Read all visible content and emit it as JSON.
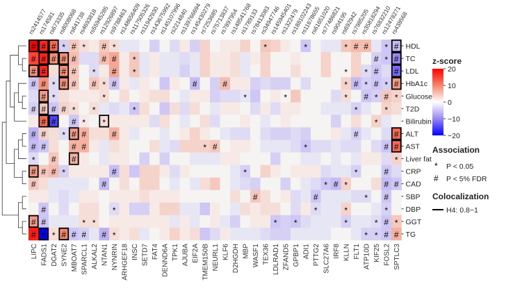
{
  "chart_data": {
    "type": "heatmap",
    "snps": [
      "rs2414577",
      "rs174581",
      "rs673335",
      "rs8008068",
      "rs641738",
      "rs4693818",
      "rs55945285",
      "rs12926897",
      "rs9788463",
      "rs148656409",
      "rs117505326",
      "rs11942930",
      "rs143675992",
      "rs145107996",
      "rs2214840",
      "rs139766694",
      "rs145430279",
      "rs7253685",
      "rs75713837",
      "rs7897954",
      "rs148541768",
      "rs1789133",
      "rs78413083",
      "rs34947746",
      "rs145945401",
      "rs1322479",
      "rs188102243",
      "rs11678655",
      "rs61651020",
      "rs77486821",
      "rs904195",
      "rs692942",
      "rs7985205",
      "rs35818294",
      "rs76832210",
      "rs12478271",
      "rs438568"
    ],
    "genes": [
      "LIPC",
      "FADS1",
      "DGAT2",
      "SYNE2",
      "MBOAT7",
      "SPARCL1",
      "ALKAL2",
      "NTAN1",
      "NYNRIN",
      "ARHGEF18",
      "INSC",
      "SETD7",
      "FAT4",
      "DENND6A",
      "TPK1",
      "AJUBA",
      "EIF2A",
      "TMEM150B",
      "NEURL1",
      "KLF6",
      "D2HGDH",
      "MBP",
      "WASF1",
      "TEX36",
      "LDLRAD1",
      "ZFAND5",
      "GPBP1",
      "ADI1",
      "PTTG2",
      "SLC27A6",
      "IRF8",
      "KLLN",
      "FLT1",
      "ATP10D",
      "KIF25",
      "FOSL2",
      "SPTLC3"
    ],
    "traits": [
      "HDL",
      "TC",
      "LDL",
      "HbA1c",
      "Glucose",
      "T2D",
      "Bilirubin",
      "ALT",
      "AST",
      "Liver fat",
      "CRP",
      "CAD",
      "SBP",
      "DBP",
      "GGT",
      "TG"
    ],
    "z": [
      [
        20,
        17,
        12,
        -3,
        4,
        2,
        1,
        4,
        2,
        -1,
        -1,
        0,
        -3,
        0,
        -2,
        1,
        -3,
        3,
        0,
        1,
        1,
        3,
        0,
        4,
        3,
        1,
        0,
        -4,
        0,
        -1,
        -1,
        4,
        5,
        5,
        -1,
        -4,
        -5
      ],
      [
        15,
        17,
        9,
        9,
        5,
        -2,
        -2,
        5,
        7,
        1,
        4,
        -1,
        1,
        -1,
        -1,
        -2,
        -1,
        3,
        1,
        1,
        2,
        -1,
        1,
        3,
        0,
        0,
        1,
        0,
        0,
        3,
        0,
        0,
        3,
        0,
        -3,
        -4,
        -10
      ],
      [
        9,
        17,
        2,
        9,
        4,
        0,
        -2,
        1,
        7,
        1,
        4,
        -1,
        1,
        -1,
        -1,
        -3,
        -1,
        3,
        1,
        1,
        2,
        -1,
        0,
        3,
        0,
        0,
        2,
        0,
        0,
        3,
        0,
        0,
        3,
        -2,
        -4,
        -2,
        -12
      ],
      [
        -4,
        9,
        -2,
        9,
        4,
        0,
        4,
        2,
        -4,
        1,
        -1,
        1,
        0,
        -4,
        1,
        0,
        -5,
        0,
        -3,
        5,
        1,
        1,
        -3,
        -2,
        -3,
        -3,
        0,
        -2,
        0,
        0,
        0,
        3,
        -5,
        -3,
        -4,
        -3,
        8
      ],
      [
        -2,
        8,
        -2,
        2,
        1,
        1,
        1,
        2,
        0,
        2,
        0,
        1,
        2,
        2,
        0,
        -1,
        1,
        1,
        -3,
        -2,
        -2,
        -1,
        -4,
        0,
        1,
        0,
        4,
        0,
        0,
        0,
        -2,
        2,
        0,
        -4,
        -3,
        4,
        3
      ],
      [
        -3,
        4,
        -4,
        3,
        2,
        0,
        2,
        -1,
        -2,
        -1,
        -4,
        2,
        0,
        -4,
        2,
        -2,
        2,
        0,
        -1,
        1,
        1,
        0,
        -2,
        1,
        -2,
        1,
        1,
        0,
        0,
        -1,
        -1,
        -1,
        -3,
        -1,
        0,
        3,
        2
      ],
      [
        1,
        12,
        -15,
        0,
        -4,
        1,
        0,
        2,
        1,
        1,
        1,
        1,
        -2,
        2,
        0,
        -1,
        0,
        2,
        -2,
        0,
        0,
        1,
        0,
        -1,
        0,
        1,
        0,
        0,
        0,
        0,
        -3,
        0,
        2,
        0,
        3,
        -1,
        0
      ],
      [
        -6,
        3,
        2,
        -2,
        8,
        6,
        2,
        2,
        6,
        1,
        -1,
        0,
        0,
        -1,
        0,
        1,
        3,
        1,
        0,
        -1,
        -2,
        -2,
        0,
        -2,
        -3,
        -3,
        -2,
        -3,
        0,
        0,
        1,
        -1,
        -3,
        -1,
        0,
        -2,
        12
      ],
      [
        -5,
        -4,
        2,
        0,
        6,
        6,
        1,
        -1,
        2,
        1,
        0,
        0,
        2,
        -1,
        -2,
        3,
        3,
        3,
        4,
        0,
        1,
        1,
        0,
        -1,
        -1,
        -1,
        -2,
        -4,
        -2,
        -2,
        -1,
        -2,
        -2,
        0,
        -2,
        -4,
        12
      ],
      [
        -2,
        0,
        4,
        0,
        6,
        1,
        0,
        -1,
        1,
        1,
        0,
        -3,
        0,
        -3,
        0,
        0,
        -1,
        -1,
        -1,
        1,
        1,
        0,
        0,
        0,
        -3,
        0,
        0,
        -1,
        -1,
        0,
        -1,
        0,
        -1,
        1,
        1,
        -2,
        3
      ],
      [
        8,
        4,
        5,
        -3,
        1,
        1,
        1,
        1,
        -5,
        2,
        -4,
        3,
        3,
        1,
        -2,
        1,
        0,
        0,
        0,
        0,
        -1,
        -3,
        0,
        3,
        1,
        0,
        1,
        1,
        1,
        -2,
        -1,
        -1,
        -3,
        0,
        0,
        -4,
        -2
      ],
      [
        4,
        2,
        -1,
        -1,
        -1,
        -1,
        0,
        -5,
        0,
        2,
        0,
        3,
        3,
        0,
        -1,
        0,
        -1,
        2,
        4,
        0,
        -1,
        -2,
        -3,
        0,
        0,
        -3,
        0,
        -1,
        -2,
        -4,
        -5,
        3,
        0,
        0,
        2,
        -5,
        -4
      ],
      [
        1,
        1,
        -1,
        -2,
        -1,
        1,
        1,
        0,
        1,
        1,
        1,
        2,
        1,
        1,
        1,
        0,
        0,
        0,
        0,
        0,
        2,
        0,
        4,
        2,
        0,
        1,
        -2,
        -1,
        -4,
        -1,
        -1,
        -1,
        -2,
        -2,
        0,
        -4,
        0
      ],
      [
        0,
        -4,
        0,
        -2,
        0,
        2,
        2,
        0,
        -2,
        1,
        -3,
        -3,
        1,
        3,
        3,
        -1,
        -1,
        -4,
        1,
        0,
        -1,
        2,
        1,
        2,
        2,
        0,
        -2,
        1,
        -2,
        -1,
        -1,
        3,
        0,
        0,
        -1,
        -3,
        0
      ],
      [
        8,
        -4,
        -1,
        -1,
        -1,
        2,
        2,
        0,
        1,
        1,
        1,
        1,
        1,
        1,
        -1,
        1,
        -1,
        0,
        1,
        -1,
        -3,
        0,
        1,
        1,
        -4,
        -3,
        -4,
        -2,
        -1,
        -1,
        -1,
        -3,
        -1,
        -1,
        -2,
        -4,
        4
      ],
      [
        18,
        -20,
        2,
        10,
        -4,
        -3,
        -1,
        -6,
        2,
        1,
        2,
        -1,
        0,
        1,
        3,
        1,
        2,
        -4,
        -2,
        1,
        -1,
        -1,
        -1,
        -2,
        -3,
        -3,
        -1,
        -1,
        -1,
        -1,
        0,
        0,
        -1,
        -3,
        -3,
        -4,
        6
      ]
    ],
    "markers": [
      "###*#*.#*..............*...*...*##.*#",
      "#####..##.*.......................#*#",
      "##.##.*.#.*....................*.*#.#",
      "##*##.#*#.......#..#...........*#*#*#",
      ".#*....*.............*...*.....*.#*#*",
      "####*.*...*.....................*..*.",
      ".##.#*.*..........................*..",
      "##.*##..#.......................#...#",
      "##..##...........*#........*.......##",
      "*.#.#...............................*",
      "###*....#............*..........*..#.",
      "#......#.....................*#*...##",
      "......................#.....#....*.#.",
      ".#......*...................*..*...*.",
      "##...**.................*.*....*..*#*",
      "##*###.#*........................**##"
    ],
    "colocalized_cells": [
      [
        0,
        0
      ],
      [
        0,
        1
      ],
      [
        0,
        2
      ],
      [
        1,
        1
      ],
      [
        1,
        2
      ],
      [
        1,
        3
      ],
      [
        2,
        0
      ],
      [
        2,
        1
      ],
      [
        2,
        3
      ],
      [
        3,
        3
      ],
      [
        4,
        1
      ],
      [
        5,
        1
      ],
      [
        6,
        1
      ],
      [
        6,
        2
      ],
      [
        6,
        7
      ],
      [
        7,
        4
      ],
      [
        9,
        4
      ],
      [
        10,
        0
      ],
      [
        14,
        0
      ],
      [
        15,
        1
      ],
      [
        15,
        3
      ],
      [
        0,
        36
      ],
      [
        1,
        36
      ],
      [
        2,
        36
      ],
      [
        3,
        36
      ],
      [
        7,
        36
      ],
      [
        8,
        36
      ]
    ],
    "color_scale": {
      "title": "z-score",
      "range": [
        -20,
        20
      ],
      "ticks": [
        "20",
        "10",
        "0",
        "−10",
        "−20"
      ],
      "high": "#ff0000",
      "mid": "#ffffff",
      "low": "#0000ff"
    },
    "legend": {
      "association_title": "Association",
      "association_items": [
        {
          "symbol": "*",
          "label": "P < 0.05"
        },
        {
          "symbol": "#",
          "label": "P < 5% FDR"
        }
      ],
      "coloc_title": "Colocalization",
      "coloc_label": "H4: 0.8−1"
    }
  }
}
